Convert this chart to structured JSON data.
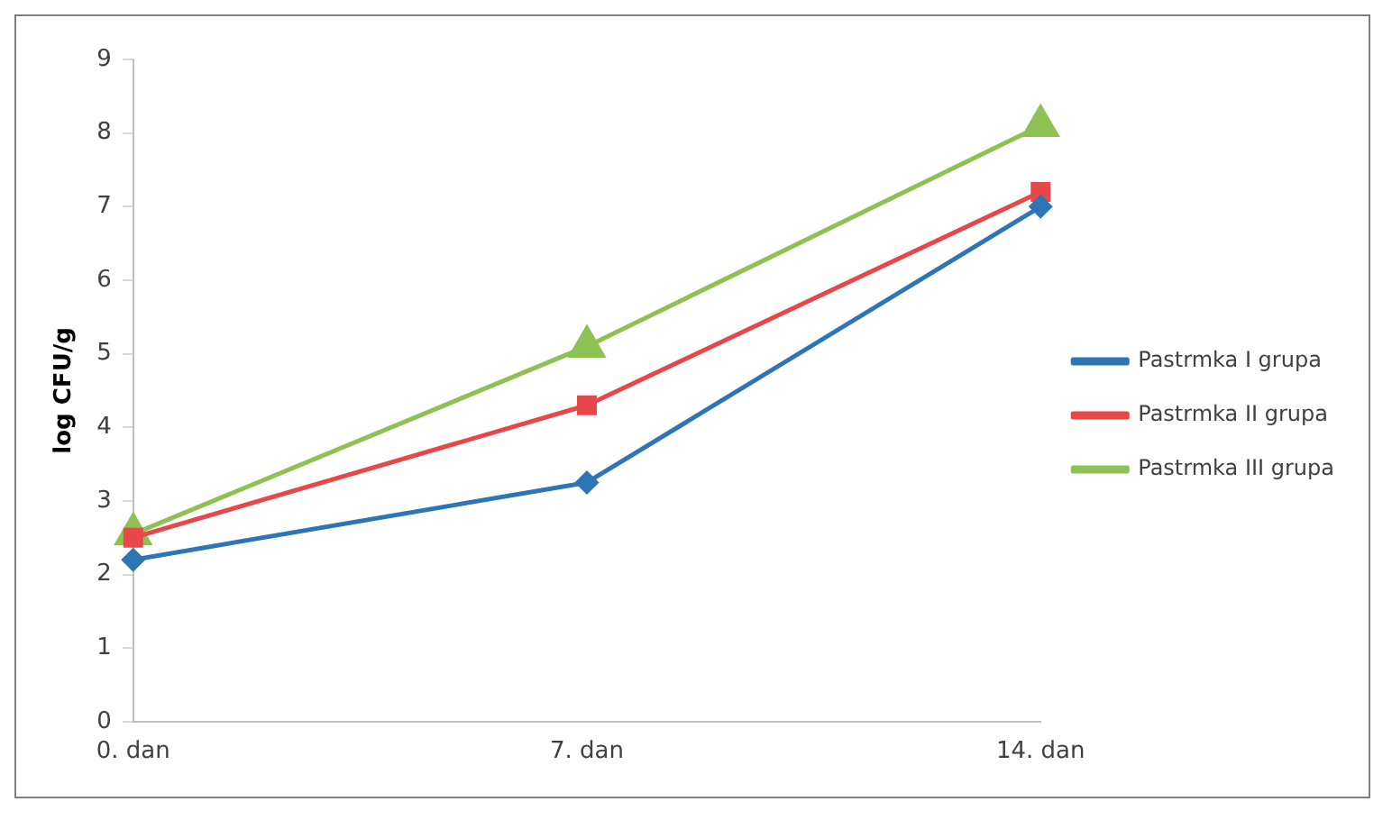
{
  "chart_data": {
    "type": "line",
    "ylabel": "log CFU/g",
    "categories": [
      "0. dan",
      "7. dan",
      "14. dan"
    ],
    "series": [
      {
        "name": "Pastrmka I grupa",
        "color": "#2e75b6",
        "marker": "diamond",
        "values": [
          2.2,
          3.25,
          7.0
        ]
      },
      {
        "name": "Pastrmka II grupa",
        "color": "#e8474a",
        "marker": "square",
        "values": [
          2.5,
          4.3,
          7.2
        ]
      },
      {
        "name": "Pastrmka III grupa",
        "color": "#8dc152",
        "marker": "triangle",
        "values": [
          2.55,
          5.1,
          8.1
        ]
      }
    ],
    "ylim": [
      0,
      9
    ],
    "yticks": [
      0,
      1,
      2,
      3,
      4,
      5,
      6,
      7,
      8,
      9
    ],
    "grid": false,
    "legend": "right"
  }
}
